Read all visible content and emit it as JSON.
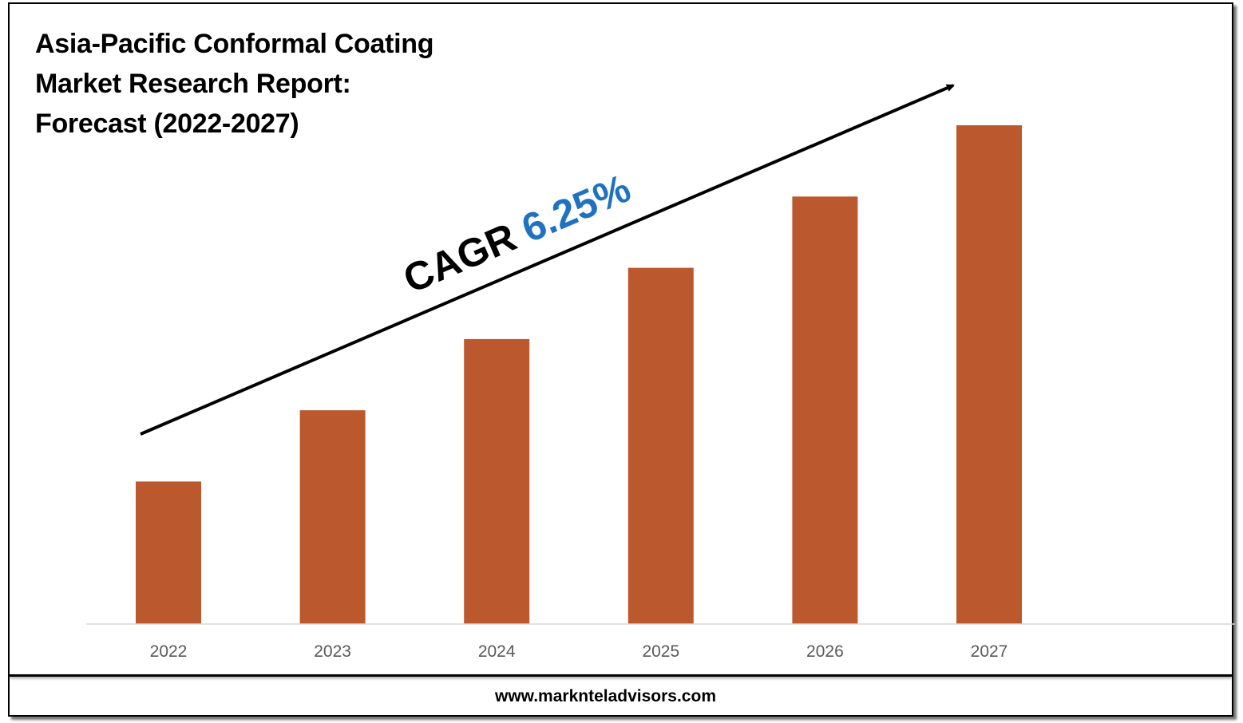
{
  "title_lines": [
    "Asia-Pacific Conformal Coating",
    "Market Research Report:",
    "Forecast (2022-2027)"
  ],
  "annotation": {
    "prefix": "CAGR",
    "value": "6.25%",
    "prefix_color": "#000000",
    "value_color": "#1F72C1"
  },
  "footer": {
    "website": "www.marknteladvisors.com"
  },
  "colors": {
    "bar": "#BC582D",
    "axis": "#D9D9D9",
    "tick_text": "#595959"
  },
  "chart_data": {
    "type": "bar",
    "categories": [
      "2022",
      "2023",
      "2024",
      "2025",
      "2026",
      "2027"
    ],
    "values": [
      1.0,
      1.5,
      2.0,
      2.5,
      3.0,
      3.5
    ],
    "value_note": "",
    "title": "Asia-Pacific Conformal Coating Market Research Report: Forecast (2022-2027)",
    "xlabel": "",
    "ylabel": "",
    "ylim": [
      0,
      3.5
    ],
    "grid": false,
    "legend": "none",
    "trend_arrow": true
  }
}
